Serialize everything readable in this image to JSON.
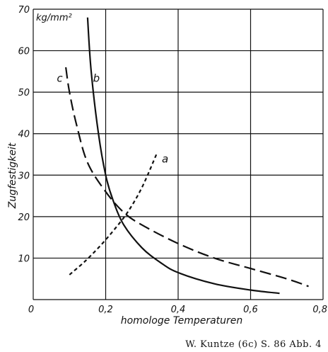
{
  "chart_data": {
    "type": "line",
    "title": "",
    "xlabel": "homologe Temperaturen",
    "ylabel": "Zugfestigkeit",
    "yunit": "kg/mm²",
    "xlim": [
      0,
      0.8
    ],
    "ylim": [
      0,
      70
    ],
    "xticks": [
      "0",
      "0,2",
      "0,4",
      "0,6",
      "0,8"
    ],
    "yticks": [
      "10",
      "20",
      "30",
      "40",
      "50",
      "60",
      "70"
    ],
    "grid": true,
    "series": [
      {
        "name": "a",
        "style": "short-dash",
        "x": [
          0.1,
          0.14,
          0.18,
          0.22,
          0.26,
          0.3,
          0.34
        ],
        "y": [
          6,
          9,
          12.5,
          16.5,
          21,
          27,
          35
        ]
      },
      {
        "name": "b",
        "style": "solid",
        "x": [
          0.15,
          0.16,
          0.18,
          0.2,
          0.22,
          0.25,
          0.3,
          0.35,
          0.4,
          0.5,
          0.6,
          0.68
        ],
        "y": [
          68,
          55,
          40,
          30,
          24,
          18,
          12.5,
          9,
          6.5,
          3.8,
          2.3,
          1.5
        ]
      },
      {
        "name": "c",
        "style": "long-dash",
        "x": [
          0.09,
          0.1,
          0.12,
          0.15,
          0.2,
          0.25,
          0.3,
          0.4,
          0.5,
          0.6,
          0.7,
          0.76
        ],
        "y": [
          56,
          50,
          42,
          33,
          26,
          21,
          18,
          13.5,
          10,
          7.5,
          5,
          3.2
        ]
      }
    ]
  },
  "caption": "W. Kuntze (6c) S. 86 Abb. 4"
}
